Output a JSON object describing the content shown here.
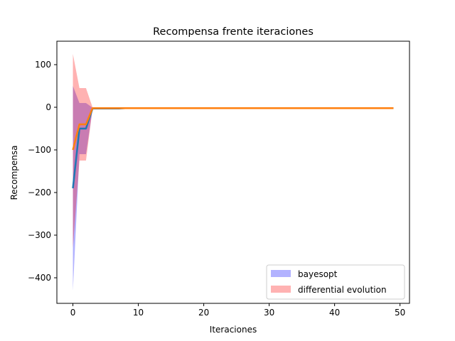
{
  "chart_data": {
    "type": "line",
    "title": "Recompensa frente iteraciones",
    "xlabel": "Iteraciones",
    "ylabel": "Recompensa",
    "xlim": [
      -2.45,
      51.45
    ],
    "ylim": [
      -460,
      155
    ],
    "xticks": [
      0,
      10,
      20,
      30,
      40,
      50
    ],
    "yticks": [
      100,
      0,
      -100,
      -200,
      -300,
      -400
    ],
    "xtick_labels": [
      "0",
      "10",
      "20",
      "30",
      "40",
      "50"
    ],
    "ytick_labels": [
      "100",
      "0",
      "−100",
      "−200",
      "−300",
      "−400"
    ],
    "grid": false,
    "legend_position": "lower-right",
    "series": [
      {
        "name": "bayesopt",
        "line_color": "#1f77b4",
        "band_color": "#0000ff",
        "band_opacity": 0.3,
        "x": [
          0,
          1,
          2,
          3,
          4,
          5,
          6,
          7,
          8,
          9,
          10,
          11,
          12,
          13,
          14,
          15,
          16,
          17,
          18,
          19,
          20,
          21,
          22,
          23,
          24,
          25,
          26,
          27,
          28,
          29,
          30,
          31,
          32,
          33,
          34,
          35,
          36,
          37,
          38,
          39,
          40,
          41,
          42,
          43,
          44,
          45,
          46,
          47,
          48,
          49
        ],
        "mean": [
          -190,
          -50,
          -50,
          -3,
          -3,
          -3,
          -3,
          -3,
          -2,
          -2,
          -2,
          -2,
          -2,
          -2,
          -2,
          -2,
          -2,
          -2,
          -2,
          -2,
          -2,
          -2,
          -2,
          -2,
          -2,
          -2,
          -2,
          -2,
          -2,
          -2,
          -2,
          -2,
          -2,
          -2,
          -2,
          -2,
          -2,
          -2,
          -2,
          -2,
          -2,
          -2,
          -2,
          -2,
          -2,
          -2,
          -2,
          -2,
          -2,
          -2
        ],
        "upper": [
          50,
          10,
          10,
          -1,
          -1,
          -1,
          -1,
          -1,
          -1,
          -1,
          -1,
          -1,
          -1,
          -1,
          -1,
          -1,
          -1,
          -1,
          -1,
          -1,
          -1,
          -1,
          -1,
          -1,
          -1,
          -1,
          -1,
          -1,
          -1,
          -1,
          -1,
          -1,
          -1,
          -1,
          -1,
          -1,
          -1,
          -1,
          -1,
          -1,
          -1,
          -1,
          -1,
          -1,
          -1,
          -1,
          -1,
          -1,
          -1,
          -1
        ],
        "lower": [
          -430,
          -110,
          -110,
          -5,
          -5,
          -5,
          -5,
          -5,
          -3,
          -3,
          -3,
          -3,
          -3,
          -3,
          -3,
          -3,
          -3,
          -3,
          -3,
          -3,
          -3,
          -3,
          -3,
          -3,
          -3,
          -3,
          -3,
          -3,
          -3,
          -3,
          -3,
          -3,
          -3,
          -3,
          -3,
          -3,
          -3,
          -3,
          -3,
          -3,
          -3,
          -3,
          -3,
          -3,
          -3,
          -3,
          -3,
          -3,
          -3,
          -3
        ]
      },
      {
        "name": "differential evolution",
        "line_color": "#ff7f0e",
        "band_color": "#ff0000",
        "band_opacity": 0.3,
        "x": [
          0,
          1,
          2,
          3,
          4,
          5,
          6,
          7,
          8,
          9,
          10,
          11,
          12,
          13,
          14,
          15,
          16,
          17,
          18,
          19,
          20,
          21,
          22,
          23,
          24,
          25,
          26,
          27,
          28,
          29,
          30,
          31,
          32,
          33,
          34,
          35,
          36,
          37,
          38,
          39,
          40,
          41,
          42,
          43,
          44,
          45,
          46,
          47,
          48,
          49
        ],
        "mean": [
          -100,
          -40,
          -40,
          -2,
          -2,
          -2,
          -2,
          -2,
          -2,
          -2,
          -2,
          -2,
          -2,
          -2,
          -2,
          -2,
          -2,
          -2,
          -2,
          -2,
          -2,
          -2,
          -2,
          -2,
          -2,
          -2,
          -2,
          -2,
          -2,
          -2,
          -2,
          -2,
          -2,
          -2,
          -2,
          -2,
          -2,
          -2,
          -2,
          -2,
          -2,
          -2,
          -2,
          -2,
          -2,
          -2,
          -2,
          -2,
          -2,
          -2
        ],
        "upper": [
          125,
          45,
          45,
          0,
          0,
          0,
          0,
          0,
          -1,
          -1,
          -1,
          -1,
          -1,
          -1,
          -1,
          -1,
          -1,
          -1,
          -1,
          -1,
          -1,
          -1,
          -1,
          -1,
          -1,
          -1,
          -1,
          -1,
          -1,
          -1,
          -1,
          -1,
          -1,
          -1,
          -1,
          -1,
          -1,
          -1,
          -1,
          -1,
          -1,
          -1,
          -1,
          -1,
          -1,
          -1,
          -1,
          -1,
          -1,
          -1
        ],
        "lower": [
          -330,
          -125,
          -125,
          -4,
          -4,
          -4,
          -4,
          -4,
          -3,
          -3,
          -3,
          -3,
          -3,
          -3,
          -3,
          -3,
          -3,
          -3,
          -3,
          -3,
          -3,
          -3,
          -3,
          -3,
          -3,
          -3,
          -3,
          -3,
          -3,
          -3,
          -3,
          -3,
          -3,
          -3,
          -3,
          -3,
          -3,
          -3,
          -3,
          -3,
          -3,
          -3,
          -3,
          -3,
          -3,
          -3,
          -3,
          -3,
          -3,
          -3
        ]
      }
    ]
  }
}
